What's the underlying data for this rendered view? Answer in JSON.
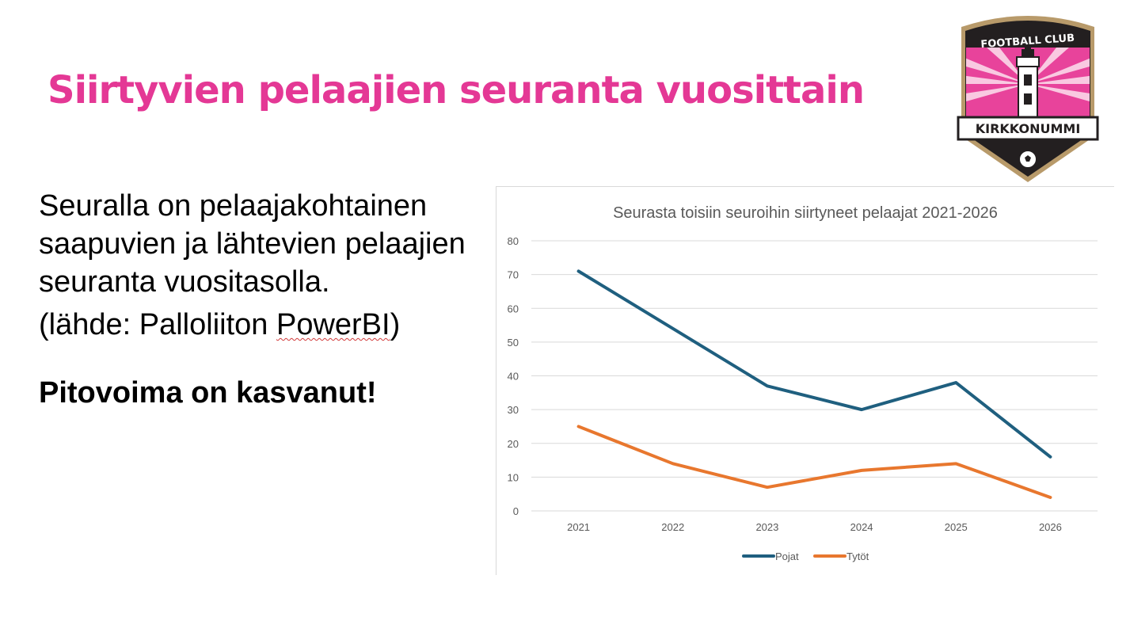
{
  "slide": {
    "title": "Siirtyvien pelaajien seuranta vuosittain",
    "paragraph": "Seuralla on pelaajakohtainen saapuvien ja lähtevien pelaajien seuranta vuositasolla.",
    "source_prefix": "(lähde: Palloliiton ",
    "source_link": "PowerBI",
    "source_suffix": ")",
    "conclusion": "Pitovoima on kasvanut!"
  },
  "logo": {
    "top_text": "FOOTBALL CLUB",
    "banner_text": "KIRKKONUMMI",
    "colors": {
      "pink": "#e8439b",
      "dark": "#231f20",
      "gold": "#b89a6a"
    }
  },
  "chart_data": {
    "type": "line",
    "title": "Seurasta toisiin seuroihin siirtyneet pelaajat 2021-2026",
    "categories": [
      "2021",
      "2022",
      "2023",
      "2024",
      "2025",
      "2026"
    ],
    "ylim": [
      0,
      80
    ],
    "yticks": [
      0,
      10,
      20,
      30,
      40,
      50,
      60,
      70,
      80
    ],
    "grid": true,
    "legend_position": "bottom",
    "series": [
      {
        "name": "Pojat",
        "values": [
          71,
          54,
          37,
          30,
          38,
          16
        ],
        "color": "#1f5f7f"
      },
      {
        "name": "Tytöt",
        "values": [
          25,
          14,
          7,
          12,
          14,
          4
        ],
        "color": "#e8772e"
      }
    ]
  }
}
